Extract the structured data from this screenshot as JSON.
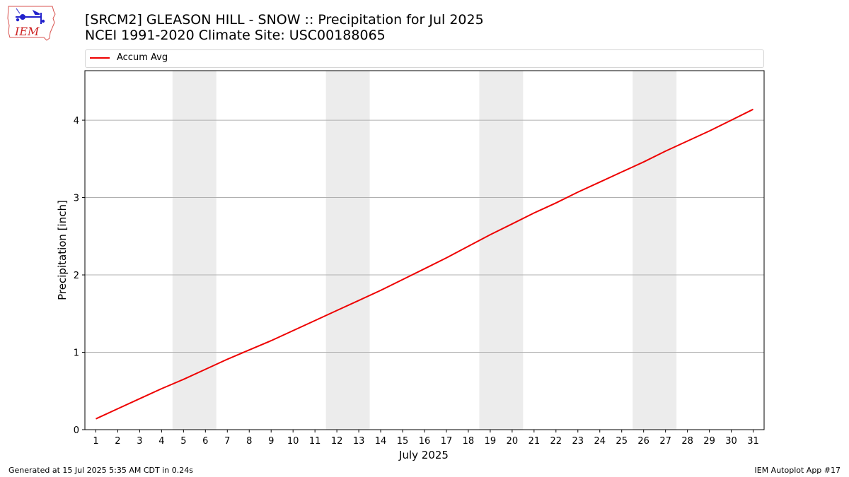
{
  "header": {
    "title_line1": "[SRCM2] GLEASON HILL - SNOW :: Precipitation for Jul 2025",
    "title_line2": "NCEI 1991-2020 Climate Site: USC00188065"
  },
  "logo": {
    "text": "IEM",
    "icon": "iem-iowa-weather-logo"
  },
  "footer": {
    "left": "Generated at 15 Jul 2025 5:35 AM CDT in 0.24s",
    "right": "IEM Autoplot App #17"
  },
  "colors": {
    "line": "#ee0000",
    "weekend_band": "#ececec",
    "grid": "#b0b0b0"
  },
  "chart_data": {
    "type": "line",
    "xlabel": "July 2025",
    "ylabel": "Precipitation [inch]",
    "xlim": [
      0.5,
      31.5
    ],
    "ylim": [
      0,
      4.64
    ],
    "x_ticks": [
      1,
      2,
      3,
      4,
      5,
      6,
      7,
      8,
      9,
      10,
      11,
      12,
      13,
      14,
      15,
      16,
      17,
      18,
      19,
      20,
      21,
      22,
      23,
      24,
      25,
      26,
      27,
      28,
      29,
      30,
      31
    ],
    "y_ticks": [
      0,
      1,
      2,
      3,
      4
    ],
    "grid": "horizontal",
    "legend": "top",
    "weekend_bands": [
      [
        4.5,
        6.5
      ],
      [
        11.5,
        13.5
      ],
      [
        18.5,
        20.5
      ],
      [
        25.5,
        27.5
      ]
    ],
    "series": [
      {
        "name": "Accum Avg",
        "color": "#ee0000",
        "x": [
          1,
          2,
          3,
          4,
          5,
          6,
          7,
          8,
          9,
          10,
          11,
          12,
          13,
          14,
          15,
          16,
          17,
          18,
          19,
          20,
          21,
          22,
          23,
          24,
          25,
          26,
          27,
          28,
          29,
          30,
          31
        ],
        "values": [
          0.14,
          0.27,
          0.4,
          0.53,
          0.65,
          0.78,
          0.91,
          1.03,
          1.15,
          1.28,
          1.41,
          1.54,
          1.67,
          1.8,
          1.94,
          2.08,
          2.22,
          2.37,
          2.52,
          2.66,
          2.8,
          2.93,
          3.07,
          3.2,
          3.33,
          3.46,
          3.6,
          3.73,
          3.86,
          4.0,
          4.14
        ]
      }
    ]
  }
}
